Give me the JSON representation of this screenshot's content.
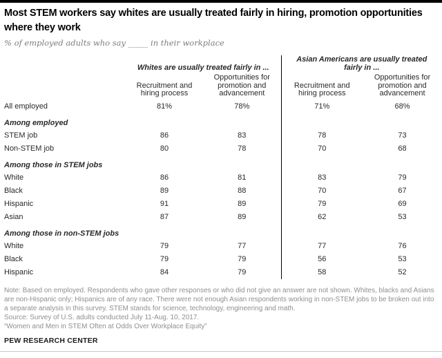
{
  "header": {
    "title": "Most STEM workers say whites are usually treated fairly in hiring, promotion opportunities where they work",
    "subtitle": "% of employed adults who say _____ in their workplace"
  },
  "chart_data": {
    "type": "table",
    "title": "Most STEM workers say whites are usually treated fairly in hiring, promotion opportunities where they work",
    "subtitle": "% of employed adults who say _____ in their workplace",
    "column_groups": [
      "Whites are usually treated fairly in ...",
      "Asian Americans are usually treated fairly in ..."
    ],
    "columns": [
      "Recruitment and hiring process",
      "Opportunities for promotion and advancement",
      "Recruitment and hiring process",
      "Opportunities for promotion and advancement"
    ],
    "sections": [
      {
        "header": "",
        "rows": [
          {
            "label": "All employed",
            "values": [
              "81%",
              "78%",
              "71%",
              "68%"
            ]
          }
        ]
      },
      {
        "header": "Among employed",
        "rows": [
          {
            "label": "STEM job",
            "values": [
              86,
              83,
              78,
              73
            ]
          },
          {
            "label": "Non-STEM job",
            "values": [
              80,
              78,
              70,
              68
            ]
          }
        ]
      },
      {
        "header": "Among those in STEM jobs",
        "rows": [
          {
            "label": "White",
            "values": [
              86,
              81,
              83,
              79
            ]
          },
          {
            "label": "Black",
            "values": [
              89,
              88,
              70,
              67
            ]
          },
          {
            "label": "Hispanic",
            "values": [
              91,
              89,
              79,
              69
            ]
          },
          {
            "label": "Asian",
            "values": [
              87,
              89,
              62,
              53
            ]
          }
        ]
      },
      {
        "header": "Among those in non-STEM jobs",
        "rows": [
          {
            "label": "White",
            "values": [
              79,
              77,
              77,
              76
            ]
          },
          {
            "label": "Black",
            "values": [
              79,
              79,
              56,
              53
            ]
          },
          {
            "label": "Hispanic",
            "values": [
              84,
              79,
              58,
              52
            ]
          }
        ]
      }
    ],
    "layout": {
      "divider_between_groups": true,
      "first_row_shows_percent_sign": true
    }
  },
  "notes": {
    "note": "Note: Based on employed. Respondents who gave other responses or who did not give an answer are not shown. Whites, blacks and Asians are non-Hispanic only; Hispanics are of any race. There were not enough Asian respondents working in non-STEM jobs to be broken out into a separate analysis in this survey. STEM stands for science, technology, engineering and math.",
    "source": "Source: Survey of U.S. adults conducted July 11-Aug. 10, 2017.",
    "quote": "“Women and Men in STEM Often at Odds Over Workplace Equity”"
  },
  "footer": {
    "brand": "PEW RESEARCH CENTER"
  },
  "colors": {
    "top_bar": "#000000",
    "divider": "#000000",
    "bottom_rule": "#c9c9c9",
    "title_text": "#000000",
    "subtitle_text": "#7d7d7d",
    "table_text": "#282828",
    "note_text": "#8f8f8f"
  }
}
